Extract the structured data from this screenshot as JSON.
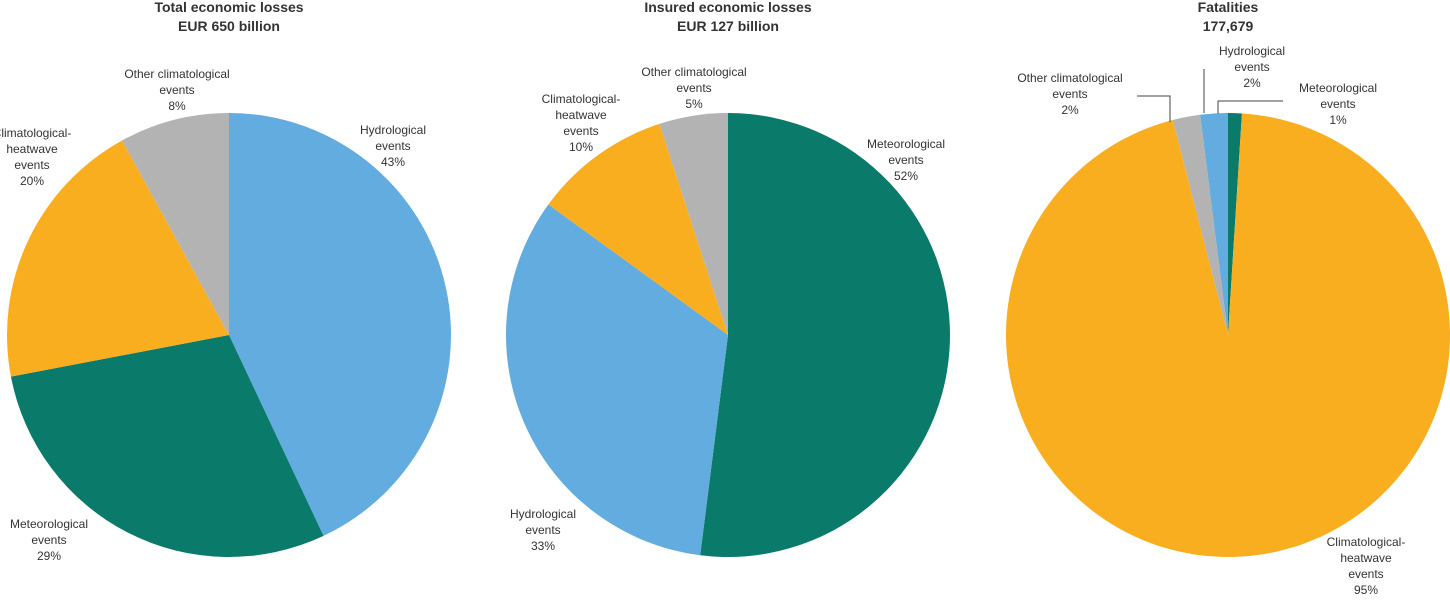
{
  "chart_data": [
    {
      "type": "pie",
      "title": "Total economic losses",
      "subtitle": "EUR 650 billion",
      "slices": [
        {
          "name": "Hydrological events",
          "value": 43,
          "label": "43%",
          "color": "#62ACE0"
        },
        {
          "name": "Meteorological events",
          "value": 29,
          "label": "29%",
          "color": "#0A7B6A"
        },
        {
          "name": "Climatological-heatwave events",
          "value": 20,
          "label": "20%",
          "color": "#F9AE20"
        },
        {
          "name": "Other climatological events",
          "value": 8,
          "label": "8%",
          "color": "#B3B3B3"
        }
      ]
    },
    {
      "type": "pie",
      "title": "Insured economic losses",
      "subtitle": "EUR 127 billion",
      "slices": [
        {
          "name": "Meteorological events",
          "value": 52,
          "label": "52%",
          "color": "#0A7B6A"
        },
        {
          "name": "Hydrological events",
          "value": 33,
          "label": "33%",
          "color": "#62ACE0"
        },
        {
          "name": "Climatological-heatwave events",
          "value": 10,
          "label": "10%",
          "color": "#F9AE20"
        },
        {
          "name": "Other climatological events",
          "value": 5,
          "label": "5%",
          "color": "#B3B3B3"
        }
      ]
    },
    {
      "type": "pie",
      "title": "Fatalities",
      "subtitle": "177,679",
      "slices": [
        {
          "name": "Meteorological events",
          "value": 1,
          "label": "1%",
          "color": "#0A7B6A"
        },
        {
          "name": "Climatological-heatwave events",
          "value": 95,
          "label": "95%",
          "color": "#F9AE20"
        },
        {
          "name": "Other climatological events",
          "value": 2,
          "label": "2%",
          "color": "#B3B3B3"
        },
        {
          "name": "Hydrological events",
          "value": 2,
          "label": "2%",
          "color": "#62ACE0"
        }
      ]
    }
  ]
}
